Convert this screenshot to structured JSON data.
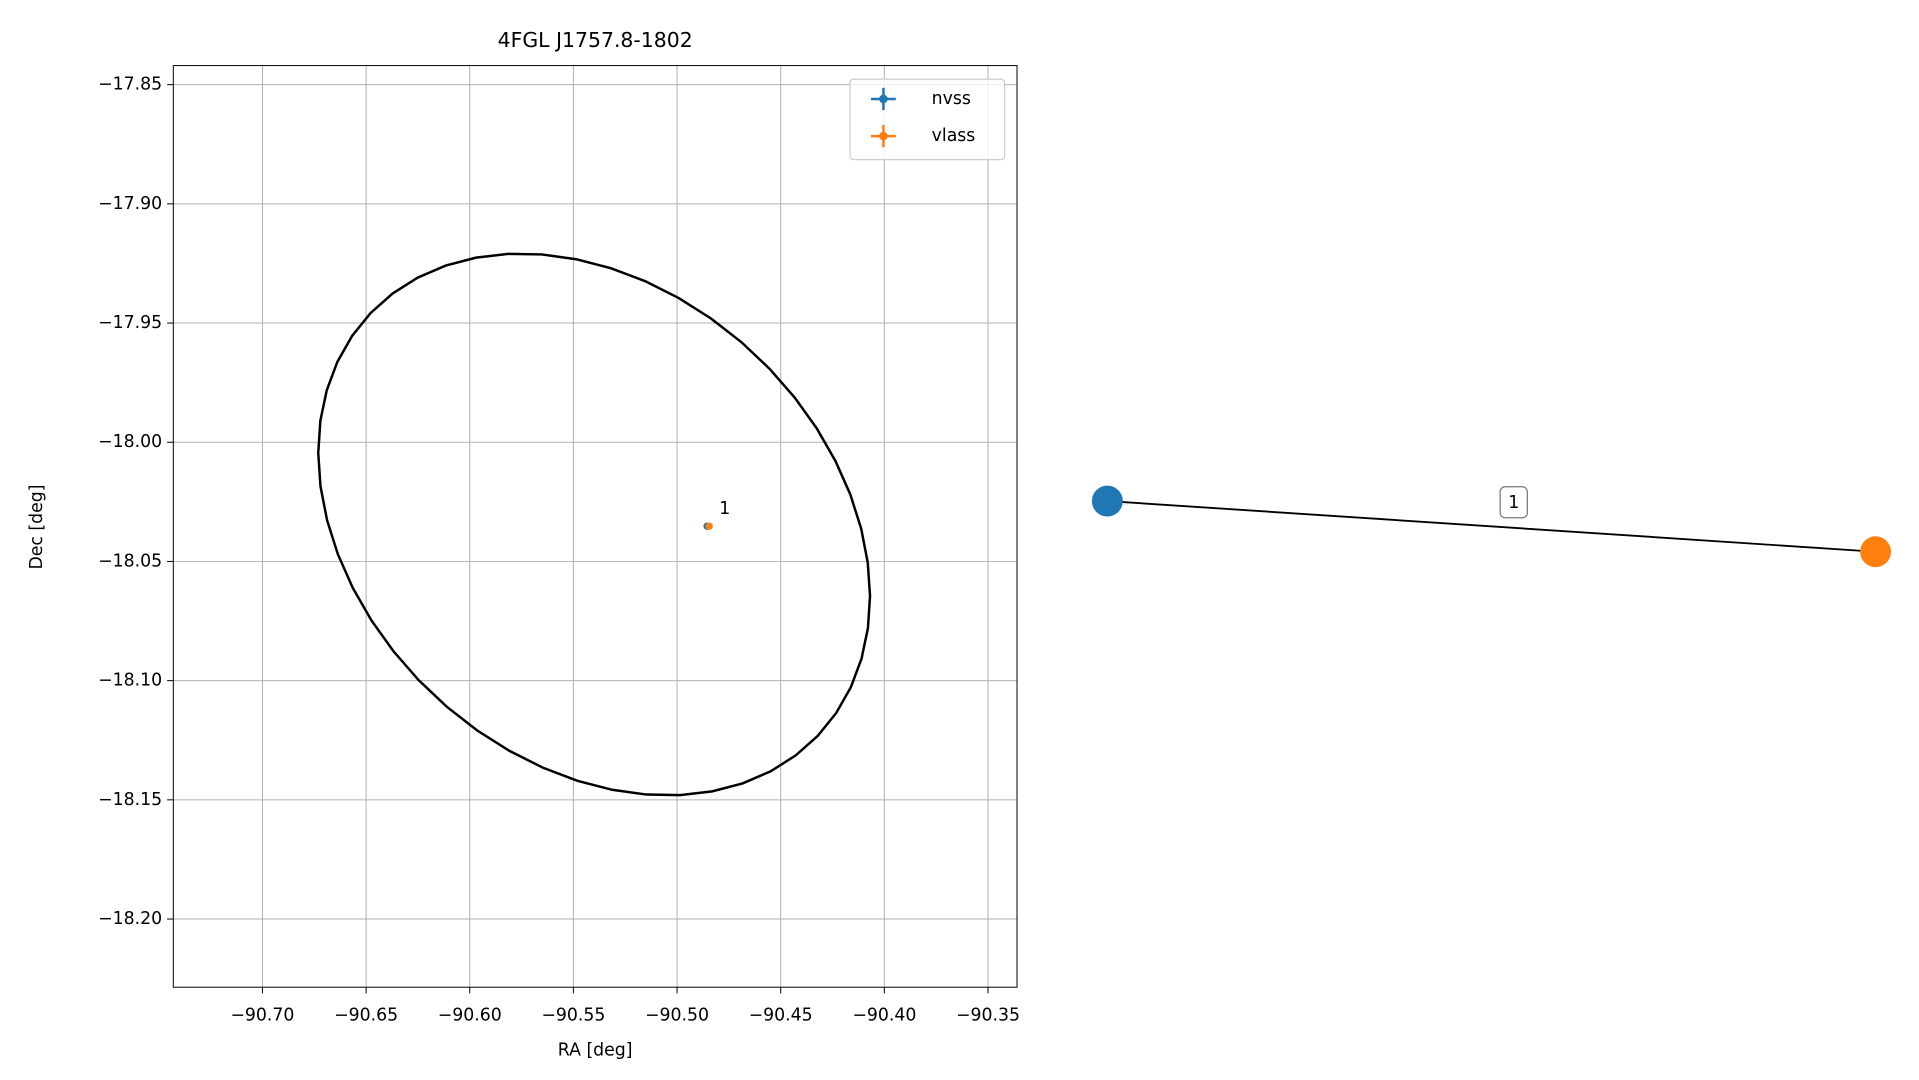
{
  "chart_data": [
    {
      "type": "scatter",
      "title": "4FGL J1757.8-1802",
      "xlabel": "RA [deg]",
      "ylabel": "Dec [deg]",
      "xlim": [
        -90.743,
        -90.336
      ],
      "ylim": [
        -18.2286,
        -17.842
      ],
      "xticks": [
        {
          "value": -90.7,
          "label": "−90.70"
        },
        {
          "value": -90.65,
          "label": "−90.65"
        },
        {
          "value": -90.6,
          "label": "−90.60"
        },
        {
          "value": -90.55,
          "label": "−90.55"
        },
        {
          "value": -90.5,
          "label": "−90.50"
        },
        {
          "value": -90.45,
          "label": "−90.45"
        },
        {
          "value": -90.4,
          "label": "−90.40"
        },
        {
          "value": -90.35,
          "label": "−90.35"
        }
      ],
      "yticks": [
        {
          "value": -17.85,
          "label": "−17.85"
        },
        {
          "value": -17.9,
          "label": "−17.90"
        },
        {
          "value": -17.95,
          "label": "−17.95"
        },
        {
          "value": -18.0,
          "label": "−18.00"
        },
        {
          "value": -18.05,
          "label": "−18.05"
        },
        {
          "value": -18.1,
          "label": "−18.10"
        },
        {
          "value": -18.15,
          "label": "−18.15"
        },
        {
          "value": -18.2,
          "label": "−18.20"
        }
      ],
      "grid": true,
      "legend": "upper right",
      "series": [
        {
          "name": "nvss",
          "color": "#1f77b4",
          "x": [
            -90.4855
          ],
          "values": [
            -18.0352
          ]
        },
        {
          "name": "vlass",
          "color": "#ff7f0e",
          "x": [
            -90.4845
          ],
          "values": [
            -18.0352
          ]
        }
      ],
      "ellipse": {
        "color": "#000000",
        "center": [
          -90.54,
          -18.0345
        ],
        "axis1": [
          0.132,
          -0.016
        ],
        "axis2": [
          -0.017,
          0.1125
        ]
      },
      "annotations": [
        {
          "text": "1",
          "x": -90.477,
          "y": -18.028
        }
      ]
    },
    {
      "type": "graph",
      "nodes": [
        {
          "color": "#1f77b4"
        },
        {
          "color": "#ff7f0e"
        }
      ],
      "edges": [
        {
          "source": 0,
          "target": 1,
          "label": "1"
        }
      ]
    }
  ]
}
